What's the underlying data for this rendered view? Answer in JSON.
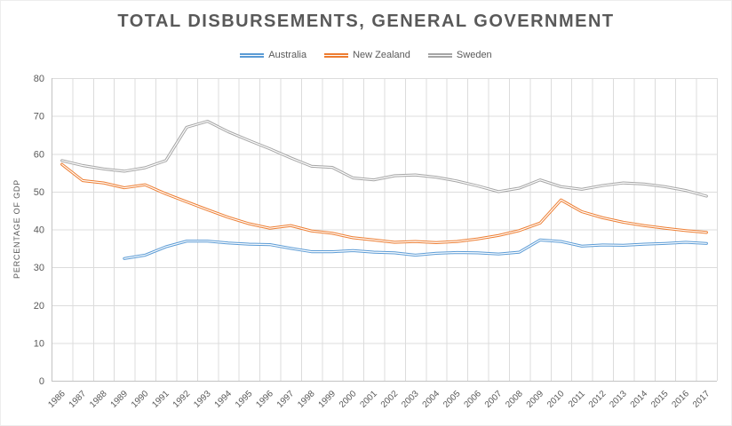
{
  "title": "TOTAL DISBURSEMENTS, GENERAL GOVERNMENT",
  "y_axis_title": "PERCENTAGE OF GDP",
  "colors": {
    "text": "#595959",
    "gridline": "#DCDCDC",
    "axis": "#C3C3C3",
    "background": "#FFFFFF",
    "australia": "#5B9BD5",
    "new_zealand": "#ED7D31",
    "sweden": "#A5A5A5"
  },
  "chart_data": {
    "type": "line",
    "title": "TOTAL DISBURSEMENTS, GENERAL GOVERNMENT",
    "xlabel": "",
    "ylabel": "PERCENTAGE OF GDP",
    "ylim": [
      0,
      80
    ],
    "ytick_step": 10,
    "grid": true,
    "legend_position": "top",
    "x": [
      1986,
      1987,
      1988,
      1989,
      1990,
      1991,
      1992,
      1993,
      1994,
      1995,
      1996,
      1997,
      1998,
      1999,
      2000,
      2001,
      2002,
      2003,
      2004,
      2005,
      2006,
      2007,
      2008,
      2009,
      2010,
      2011,
      2012,
      2013,
      2014,
      2015,
      2016,
      2017
    ],
    "series": [
      {
        "name": "Australia",
        "color": "#5B9BD5",
        "values": [
          null,
          null,
          null,
          32.3,
          33.2,
          35.4,
          36.9,
          36.9,
          36.4,
          36.1,
          36.0,
          35.0,
          34.1,
          34.1,
          34.4,
          34.0,
          33.8,
          33.2,
          33.7,
          33.9,
          33.8,
          33.5,
          34.0,
          37.2,
          36.8,
          35.6,
          35.9,
          35.8,
          36.1,
          36.3,
          36.6,
          36.3
        ]
      },
      {
        "name": "New Zealand",
        "color": "#ED7D31",
        "values": [
          57.2,
          52.9,
          52.3,
          51.0,
          51.8,
          49.4,
          47.3,
          45.2,
          43.2,
          41.5,
          40.3,
          41.0,
          39.6,
          39.0,
          37.8,
          37.2,
          36.6,
          36.8,
          36.5,
          36.8,
          37.5,
          38.4,
          39.7,
          41.7,
          47.8,
          44.7,
          43.1,
          41.9,
          41.0,
          40.3,
          39.7,
          39.2
        ]
      },
      {
        "name": "Sweden",
        "color": "#A5A5A5",
        "values": [
          58.2,
          56.9,
          56.0,
          55.4,
          56.3,
          58.2,
          67.0,
          68.6,
          65.8,
          63.5,
          61.3,
          58.9,
          56.7,
          56.4,
          53.6,
          53.1,
          54.2,
          54.4,
          53.8,
          52.8,
          51.5,
          50.0,
          50.9,
          53.1,
          51.3,
          50.6,
          51.6,
          52.3,
          52.0,
          51.3,
          50.3,
          48.8
        ]
      }
    ]
  }
}
